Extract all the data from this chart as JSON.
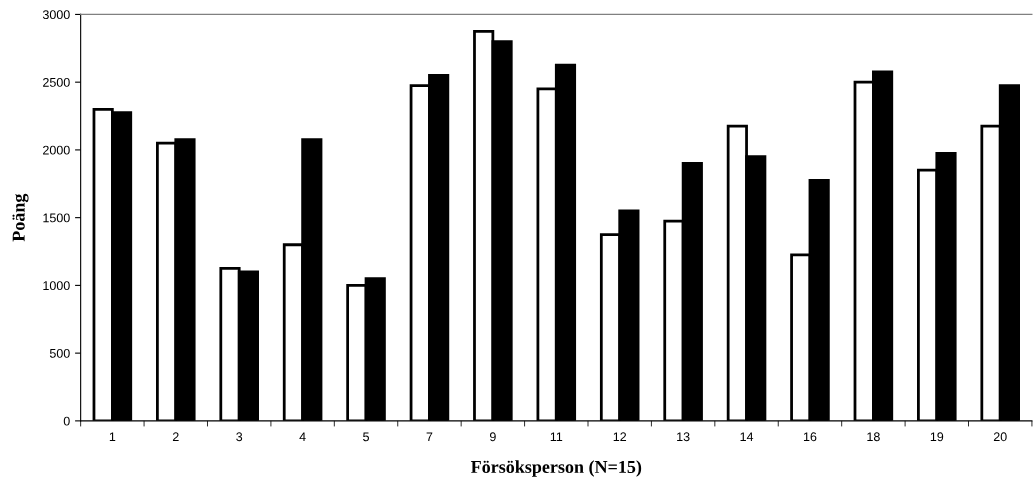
{
  "chart_data": {
    "type": "bar",
    "xlabel": "Försöksperson (N=15)",
    "ylabel": "Poäng",
    "categories": [
      "1",
      "2",
      "3",
      "4",
      "5",
      "7",
      "9",
      "11",
      "12",
      "13",
      "14",
      "16",
      "18",
      "19",
      "20"
    ],
    "series": [
      {
        "color": "#ffffff",
        "values": [
          2300,
          2050,
          1125,
          1300,
          1000,
          2475,
          2875,
          2450,
          1375,
          1475,
          2175,
          1225,
          2500,
          1850,
          2175
        ]
      },
      {
        "color": "#000000",
        "values": [
          2275,
          2075,
          1100,
          2075,
          1050,
          2550,
          2800,
          2625,
          1550,
          1900,
          1950,
          1775,
          2575,
          1975,
          2475
        ]
      }
    ],
    "ylim": [
      0,
      3000
    ],
    "yticks": [
      0,
      500,
      1000,
      1500,
      2000,
      2500,
      3000
    ],
    "grid": false
  }
}
